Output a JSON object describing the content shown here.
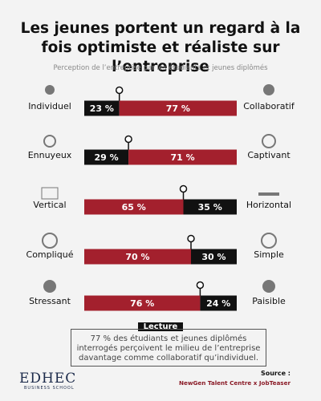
{
  "chart_data": {
    "type": "split-bar",
    "title": "Les jeunes portent un regard à la fois optimiste et réaliste sur l’entreprise",
    "subtitle": "Perception de l’entreprise par les étudiants et jeunes diplômés",
    "left_labels": [
      "Individuel",
      "Ennuyeux",
      "Vertical",
      "Compliqué",
      "Stressant"
    ],
    "right_labels": [
      "Collaboratif",
      "Captivant",
      "Horizontal",
      "Simple",
      "Paisible"
    ],
    "left": {
      "values": [
        23,
        29,
        65,
        70,
        76
      ],
      "value_labels": [
        "23 %",
        "29 %",
        "65 %",
        "70 %",
        "76 %"
      ]
    },
    "right": {
      "values": [
        77,
        71,
        35,
        30,
        24
      ],
      "value_labels": [
        "77 %",
        "71 %",
        "35 %",
        "30 %",
        "24 %"
      ]
    },
    "major_color": "#a3202d",
    "minor_color": "#111111",
    "note_title": "Lecture",
    "note": "77 % des étudiants et jeunes diplômés interrogés perçoivent le milieu de l’entreprise davantage comme collaboratif qu’individuel.",
    "logo": "EDHEC",
    "logo_sub": "BUSINESS SCHOOL",
    "source_label": "Source :",
    "source": "NewGen Talent Centre x JobTeaser"
  }
}
